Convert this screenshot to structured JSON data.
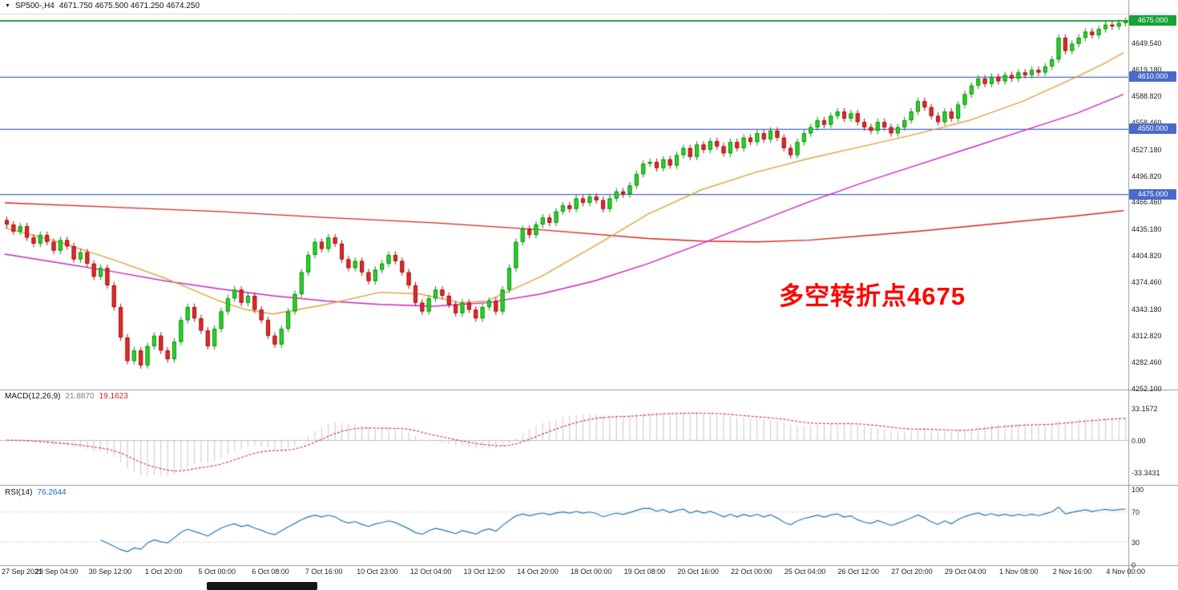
{
  "window": {
    "dropdown_icon": "▼",
    "title_symbol": "SP500-,H4",
    "title_ohlc": "4671.750 4675.500 4671.250 4674.250"
  },
  "annotation": {
    "text": "多空转折点4675",
    "color": "#ff0000"
  },
  "colors": {
    "up": "#2fd32f",
    "up_border": "#0a8f0a",
    "down": "#e32b2b",
    "down_border": "#a31010",
    "ma_red": "#d42525",
    "ma_magenta": "#c727c7",
    "ma_orange": "#dfa340",
    "macd_hist": "#c9c9c9",
    "macd_signal": "#d03030",
    "rsi_line": "#2579b5",
    "rsi_level": "#cfcfcf",
    "level_green": "#16a234",
    "level_blue": "#4a69c9",
    "separator": "#9a9a9a",
    "frame": "#d8d8d8",
    "axis_text": "#222222"
  },
  "chart_data": {
    "type": "candlestick",
    "symbol": "SP500-",
    "timeframe": "H4",
    "ohlc_display": {
      "open": "4671.750",
      "high": "4675.500",
      "low": "4671.250",
      "close": "4674.250"
    },
    "y_axis": {
      "top_price": 4680,
      "bottom_price": 4250,
      "tick_labels": [
        "4649.540",
        "4619.180",
        "4588.820",
        "4558.460",
        "4527.180",
        "4496.820",
        "4466.460",
        "4435.180",
        "4404.820",
        "4374.460",
        "4343.180",
        "4312.820",
        "4282.460",
        "4252.100"
      ]
    },
    "x_axis": {
      "labels": [
        "27 Sep 2021",
        "29 Sep 04:00",
        "30 Sep 12:00",
        "1 Oct 20:00",
        "5 Oct 00:00",
        "6 Oct 08:00",
        "7 Oct 16:00",
        "10 Oct 23:00",
        "12 Oct 04:00",
        "13 Oct 12:00",
        "14 Oct 20:00",
        "18 Oct 00:00",
        "19 Oct 08:00",
        "20 Oct 16:00",
        "22 Oct 00:00",
        "25 Oct 04:00",
        "26 Oct 12:00",
        "27 Oct 20:00",
        "29 Oct 04:00",
        "1 Nov 08:00",
        "2 Nov 16:00",
        "4 Nov 00:00"
      ]
    },
    "levels": [
      {
        "price": 4675,
        "label": "4675.000",
        "color": "#16a234",
        "line_width": 2
      },
      {
        "price": 4610,
        "label": "4610.000",
        "color": "#4a69c9",
        "line_width": 1.3
      },
      {
        "price": 4550,
        "label": "4550.000",
        "color": "#4a69c9",
        "line_width": 1.3
      },
      {
        "price": 4475,
        "label": "4475.000",
        "color": "#4a69c9",
        "line_width": 1.3
      }
    ],
    "candles": {
      "first_open": 4445,
      "wick": 4,
      "closes": [
        4440,
        4432,
        4438,
        4425,
        4418,
        4428,
        4420,
        4410,
        4422,
        4415,
        4400,
        4408,
        4395,
        4380,
        4390,
        4370,
        4345,
        4310,
        4283,
        4295,
        4278,
        4300,
        4312,
        4295,
        4285,
        4305,
        4330,
        4345,
        4332,
        4318,
        4300,
        4320,
        4340,
        4355,
        4365,
        4350,
        4358,
        4342,
        4330,
        4312,
        4302,
        4320,
        4340,
        4360,
        4385,
        4405,
        4420,
        4412,
        4425,
        4418,
        4400,
        4390,
        4398,
        4385,
        4375,
        4388,
        4395,
        4405,
        4398,
        4385,
        4370,
        4350,
        4340,
        4355,
        4365,
        4358,
        4348,
        4338,
        4350,
        4342,
        4332,
        4345,
        4352,
        4340,
        4365,
        4390,
        4420,
        4435,
        4428,
        4440,
        4448,
        4442,
        4455,
        4462,
        4458,
        4470,
        4465,
        4472,
        4468,
        4458,
        4470,
        4478,
        4475,
        4485,
        4498,
        4510,
        4512,
        4505,
        4515,
        4508,
        4520,
        4528,
        4518,
        4532,
        4526,
        4536,
        4530,
        4522,
        4535,
        4528,
        4540,
        4535,
        4545,
        4538,
        4548,
        4540,
        4528,
        4520,
        4535,
        4545,
        4552,
        4560,
        4555,
        4565,
        4570,
        4562,
        4568,
        4558,
        4552,
        4548,
        4558,
        4552,
        4545,
        4552,
        4560,
        4570,
        4582,
        4575,
        4565,
        4558,
        4570,
        4562,
        4578,
        4590,
        4600,
        4608,
        4602,
        4610,
        4605,
        4612,
        4608,
        4615,
        4612,
        4618,
        4615,
        4622,
        4630,
        4655,
        4640,
        4648,
        4655,
        4662,
        4658,
        4665,
        4670,
        4668,
        4672,
        4674.25
      ]
    },
    "moving_averages": [
      {
        "name": "ma-slow-red",
        "color": "#d42525",
        "points": [
          [
            0,
            4465
          ],
          [
            16,
            4460
          ],
          [
            32,
            4455
          ],
          [
            48,
            4448
          ],
          [
            64,
            4442
          ],
          [
            80,
            4434
          ],
          [
            96,
            4424
          ],
          [
            104,
            4421
          ],
          [
            112,
            4420
          ],
          [
            120,
            4422
          ],
          [
            128,
            4427
          ],
          [
            136,
            4432
          ],
          [
            144,
            4438
          ],
          [
            152,
            4444
          ],
          [
            160,
            4450
          ],
          [
            167,
            4456
          ]
        ]
      },
      {
        "name": "ma-mid-magenta",
        "color": "#c727c7",
        "points": [
          [
            0,
            4406
          ],
          [
            8,
            4396
          ],
          [
            16,
            4386
          ],
          [
            24,
            4375
          ],
          [
            32,
            4366
          ],
          [
            40,
            4358
          ],
          [
            48,
            4352
          ],
          [
            56,
            4348
          ],
          [
            64,
            4346
          ],
          [
            72,
            4350
          ],
          [
            80,
            4360
          ],
          [
            88,
            4375
          ],
          [
            96,
            4395
          ],
          [
            104,
            4418
          ],
          [
            112,
            4442
          ],
          [
            120,
            4466
          ],
          [
            128,
            4488
          ],
          [
            136,
            4508
          ],
          [
            144,
            4528
          ],
          [
            152,
            4548
          ],
          [
            160,
            4568
          ],
          [
            167,
            4590
          ]
        ]
      },
      {
        "name": "ma-fast-orange",
        "color": "#dfa340",
        "points": [
          [
            0,
            4436
          ],
          [
            8,
            4420
          ],
          [
            16,
            4400
          ],
          [
            24,
            4378
          ],
          [
            32,
            4352
          ],
          [
            36,
            4342
          ],
          [
            40,
            4337
          ],
          [
            48,
            4348
          ],
          [
            56,
            4362
          ],
          [
            62,
            4360
          ],
          [
            68,
            4350
          ],
          [
            72,
            4352
          ],
          [
            80,
            4380
          ],
          [
            88,
            4415
          ],
          [
            96,
            4452
          ],
          [
            104,
            4480
          ],
          [
            112,
            4500
          ],
          [
            120,
            4516
          ],
          [
            128,
            4530
          ],
          [
            136,
            4544
          ],
          [
            144,
            4560
          ],
          [
            152,
            4582
          ],
          [
            160,
            4610
          ],
          [
            164,
            4625
          ],
          [
            167,
            4638
          ]
        ]
      }
    ],
    "indicators": {
      "macd": {
        "label": "MACD(12,26,9)",
        "value_main": "21.8870",
        "value_signal": "19.1623",
        "fast": 12,
        "slow": 26,
        "signal": 9,
        "axis_labels": [
          "33.1572",
          "0.00",
          "-33.3431"
        ]
      },
      "rsi": {
        "label": "RSI(14)",
        "value": "76.2644",
        "period": 14,
        "axis_labels": [
          "100",
          "70",
          "30",
          "0"
        ],
        "levels": [
          70,
          30
        ]
      }
    }
  }
}
